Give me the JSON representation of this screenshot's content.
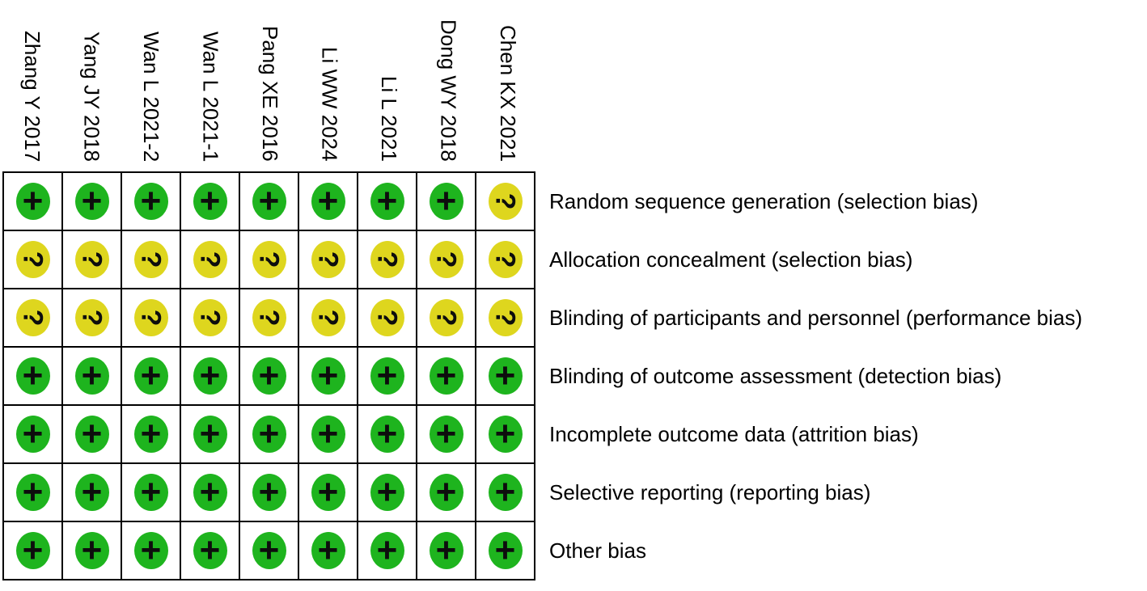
{
  "figure_title": "risk-of-bias-summary",
  "colors": {
    "low_risk_circle": "#1EB41E",
    "unclear_risk_circle": "#DED61E",
    "symbol": "#0d0d0d",
    "grid_line": "#000000"
  },
  "chart_data": {
    "type": "table",
    "studies": [
      "Zhang Y 2017",
      "Yang JY 2018",
      "Wan L 2021-2",
      "Wan L 2021-1",
      "Pang XE 2016",
      "Li WW 2024",
      "Li L 2021",
      "Dong WY 2018",
      "Chen KX 2021"
    ],
    "domains": [
      "Random sequence generation (selection bias)",
      "Allocation concealment (selection bias)",
      "Blinding of participants and personnel (performance bias)",
      "Blinding of outcome assessment (detection bias)",
      "Incomplete outcome data (attrition bias)",
      "Selective reporting (reporting bias)",
      "Other bias"
    ],
    "judgments": [
      [
        "+",
        "+",
        "+",
        "+",
        "+",
        "+",
        "+",
        "+",
        "?"
      ],
      [
        "?",
        "?",
        "?",
        "?",
        "?",
        "?",
        "?",
        "?",
        "?"
      ],
      [
        "?",
        "?",
        "?",
        "?",
        "?",
        "?",
        "?",
        "?",
        "?"
      ],
      [
        "+",
        "+",
        "+",
        "+",
        "+",
        "+",
        "+",
        "+",
        "+"
      ],
      [
        "+",
        "+",
        "+",
        "+",
        "+",
        "+",
        "+",
        "+",
        "+"
      ],
      [
        "+",
        "+",
        "+",
        "+",
        "+",
        "+",
        "+",
        "+",
        "+"
      ],
      [
        "+",
        "+",
        "+",
        "+",
        "+",
        "+",
        "+",
        "+",
        "+"
      ]
    ],
    "layout": {
      "grid": true,
      "header_orientation": "vertical-rotated-90cw",
      "row_labels_position": "right"
    }
  }
}
